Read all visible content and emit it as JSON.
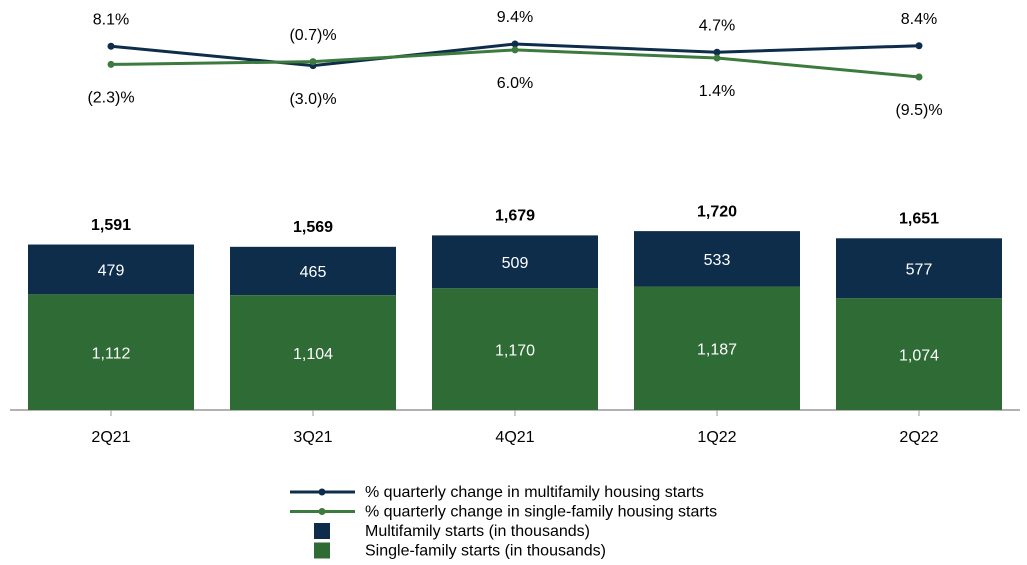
{
  "chart_data": {
    "type": "bar",
    "categories": [
      "2Q21",
      "3Q21",
      "4Q21",
      "1Q22",
      "2Q22"
    ],
    "series": [
      {
        "name": "% quarterly change in multifamily housing starts",
        "type": "line",
        "color": "#0d2d4a",
        "values": [
          8.1,
          -3.0,
          9.4,
          4.7,
          8.4
        ],
        "value_labels": [
          "8.1%",
          "(3.0)%",
          "9.4%",
          "4.7%",
          "8.4%"
        ]
      },
      {
        "name": "% quarterly change in single-family housing starts",
        "type": "line",
        "color": "#3c7a3e",
        "values": [
          -2.3,
          -0.7,
          6.0,
          1.4,
          -9.5
        ],
        "value_labels": [
          "(2.3)%",
          "(0.7)%",
          "6.0%",
          "1.4%",
          "(9.5)%"
        ]
      },
      {
        "name": "Multifamily starts (in thousands)",
        "type": "bar",
        "color": "#0d2d4a",
        "values": [
          479,
          465,
          509,
          533,
          577
        ],
        "value_labels": [
          "479",
          "465",
          "509",
          "533",
          "577"
        ]
      },
      {
        "name": "Single-family starts (in thousands)",
        "type": "bar",
        "color": "#2e6b35",
        "values": [
          1112,
          1104,
          1170,
          1187,
          1074
        ],
        "value_labels": [
          "1,112",
          "1,104",
          "1,170",
          "1,187",
          "1,074"
        ]
      }
    ],
    "totals": [
      1591,
      1569,
      1679,
      1720,
      1651
    ],
    "total_labels": [
      "1,591",
      "1,569",
      "1,679",
      "1,720",
      "1,651"
    ]
  }
}
